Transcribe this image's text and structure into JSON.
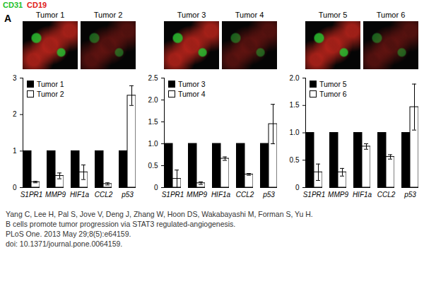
{
  "figure": {
    "panel_letter": "A",
    "stain_labels": [
      {
        "text": "CD31",
        "color": "#22c02a"
      },
      {
        "text": "CD19",
        "color": "#e0201a"
      }
    ],
    "image_labels": [
      "Tumor 1",
      "Tumor 2",
      "Tumor 3",
      "Tumor 4",
      "Tumor 5",
      "Tumor 6"
    ]
  },
  "chart_data": [
    {
      "type": "bar",
      "categories": [
        "S1PR1",
        "MMP9",
        "HIF1a",
        "CCL2",
        "p53"
      ],
      "series": [
        {
          "name": "Tumor 1",
          "color": "#000000",
          "values": [
            1,
            1,
            1,
            1,
            1
          ]
        },
        {
          "name": "Tumor 2",
          "color": "#ffffff",
          "values": [
            0.15,
            0.32,
            0.42,
            0.1,
            2.52
          ],
          "errors": [
            0.02,
            0.08,
            0.2,
            0.03,
            0.27
          ]
        }
      ],
      "ylim": [
        0,
        3
      ],
      "yticks": [
        0,
        1,
        2,
        3
      ],
      "legend": "top-left"
    },
    {
      "type": "bar",
      "categories": [
        "S1PR1",
        "MMP9",
        "HIF1a",
        "CCL2",
        "p53"
      ],
      "series": [
        {
          "name": "Tumor 3",
          "color": "#000000",
          "values": [
            1,
            1,
            1,
            1,
            1
          ]
        },
        {
          "name": "Tumor 4",
          "color": "#ffffff",
          "values": [
            0.2,
            0.1,
            0.66,
            0.3,
            1.45
          ],
          "errors": [
            0.2,
            0.03,
            0.04,
            0.02,
            0.45
          ]
        }
      ],
      "ylim": [
        0,
        2.5
      ],
      "yticks": [
        0,
        0.5,
        {
          "value": 1,
          "label": "1.0"
        },
        1.5,
        {
          "value": 2,
          "label": "2.0"
        },
        2.5
      ],
      "legend": "top-left"
    },
    {
      "type": "bar",
      "categories": [
        "S1PR1",
        "MMP9",
        "HIF1a",
        "CCL2",
        "p53"
      ],
      "series": [
        {
          "name": "Tumor 5",
          "color": "#000000",
          "values": [
            1,
            1,
            1,
            1,
            1
          ]
        },
        {
          "name": "Tumor 6",
          "color": "#ffffff",
          "values": [
            0.28,
            0.28,
            0.75,
            0.56,
            1.47
          ],
          "errors": [
            0.15,
            0.07,
            0.05,
            0.04,
            0.42
          ]
        }
      ],
      "ylim": [
        0,
        2
      ],
      "yticks": [
        0,
        0.5,
        {
          "value": 1,
          "label": "1.0"
        },
        1.5,
        {
          "value": 2,
          "label": "2.0"
        }
      ],
      "legend": "top-left"
    }
  ],
  "caption": [
    "Yang C, Lee H, Pal S, Jove V, Deng J, Zhang W, Hoon DS, Wakabayashi M, Forman S, Yu H.",
    "B cells promote tumor progression via STAT3 regulated-angiogenesis.",
    "PLoS One. 2013 May 29;8(5):e64159.",
    "doi: 10.1371/journal.pone.0064159."
  ]
}
